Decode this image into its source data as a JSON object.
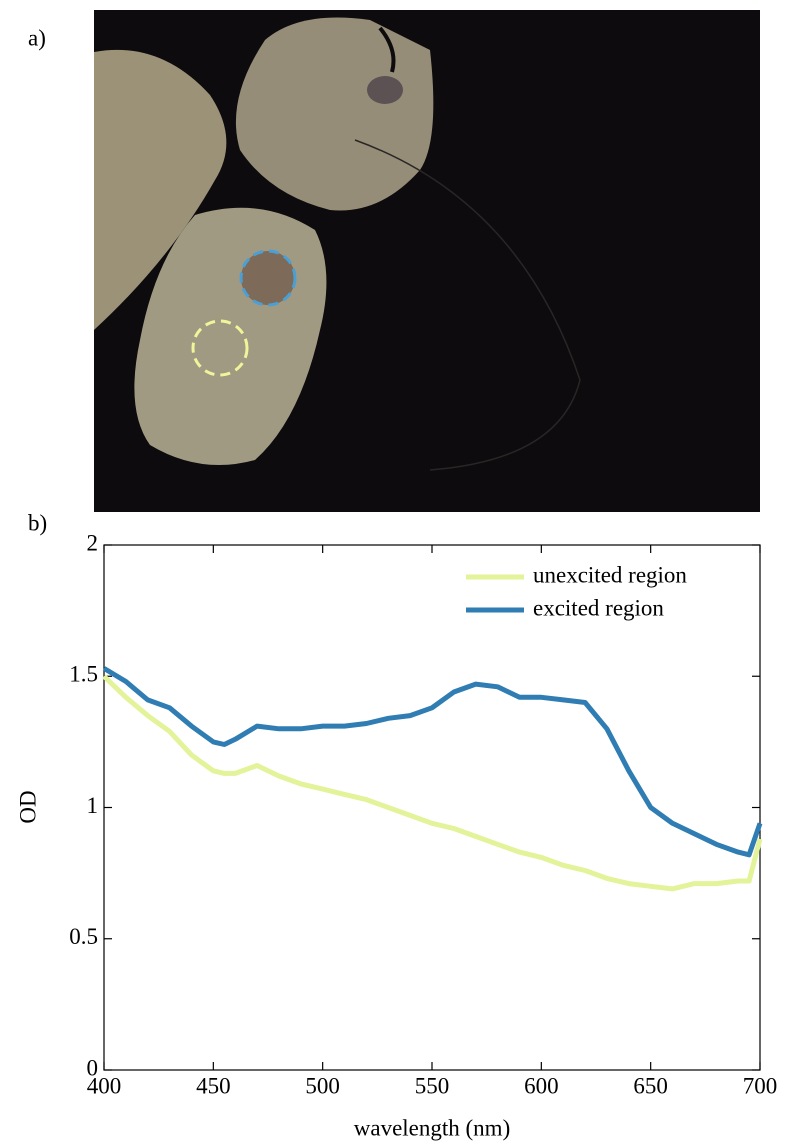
{
  "panel_labels": {
    "a": "a)",
    "b": "b)"
  },
  "chart_data": {
    "type": "line",
    "xlabel": "wavelength (nm)",
    "ylabel": "OD",
    "x": [
      400,
      410,
      420,
      430,
      440,
      450,
      455,
      460,
      470,
      480,
      490,
      500,
      510,
      520,
      530,
      540,
      550,
      560,
      570,
      580,
      590,
      600,
      610,
      620,
      630,
      640,
      650,
      660,
      670,
      680,
      690,
      695,
      700
    ],
    "series": [
      {
        "name": "unexcited region",
        "color": "#e2f39a",
        "values": [
          1.5,
          1.42,
          1.35,
          1.29,
          1.2,
          1.14,
          1.13,
          1.13,
          1.16,
          1.12,
          1.09,
          1.07,
          1.05,
          1.03,
          1.0,
          0.97,
          0.94,
          0.92,
          0.89,
          0.86,
          0.83,
          0.81,
          0.78,
          0.76,
          0.73,
          0.71,
          0.7,
          0.69,
          0.71,
          0.71,
          0.72,
          0.72,
          0.88
        ]
      },
      {
        "name": "excited region",
        "color": "#2f7db3",
        "values": [
          1.53,
          1.48,
          1.41,
          1.38,
          1.31,
          1.25,
          1.24,
          1.26,
          1.31,
          1.3,
          1.3,
          1.31,
          1.31,
          1.32,
          1.34,
          1.35,
          1.38,
          1.44,
          1.47,
          1.46,
          1.42,
          1.42,
          1.41,
          1.4,
          1.3,
          1.14,
          1.0,
          0.94,
          0.9,
          0.86,
          0.83,
          0.82,
          0.94
        ]
      }
    ],
    "xlim": [
      400,
      700
    ],
    "ylim": [
      0,
      2
    ],
    "xticks": [
      400,
      450,
      500,
      550,
      600,
      650,
      700
    ],
    "yticks": [
      0,
      0.5,
      1,
      1.5,
      2
    ],
    "legend": "upper right"
  }
}
